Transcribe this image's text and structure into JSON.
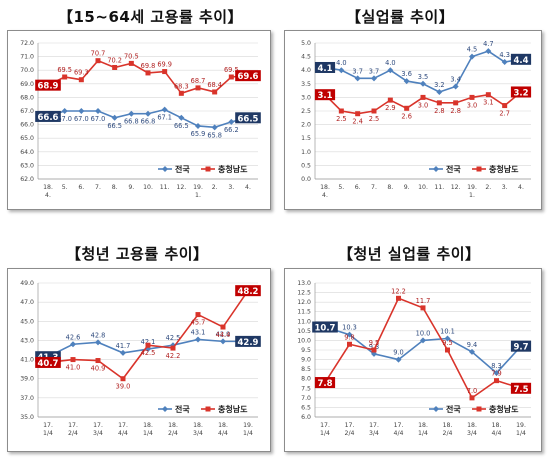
{
  "chart_data": [
    {
      "type": "line",
      "title": "【15~64세 고용률 추이】",
      "categories": [
        [
          "18.",
          "4."
        ],
        [
          "5."
        ],
        [
          "6."
        ],
        [
          "7."
        ],
        [
          "8."
        ],
        [
          "9."
        ],
        [
          "10."
        ],
        [
          "11."
        ],
        [
          "12."
        ],
        [
          "19.",
          "1."
        ],
        [
          "2."
        ],
        [
          "3."
        ],
        [
          "4."
        ]
      ],
      "ylim": [
        62.0,
        72.0
      ],
      "yticks": [
        "62.0",
        "63.0",
        "64.0",
        "65.0",
        "66.0",
        "67.0",
        "68.0",
        "69.0",
        "70.0",
        "71.0",
        "72.0"
      ],
      "grid": true,
      "legend": "bottom-right",
      "series": [
        {
          "name": "전국",
          "color": "#4f81bd",
          "marker": "diamond",
          "values": [
            66.6,
            67.0,
            67.0,
            67.0,
            66.5,
            66.8,
            66.8,
            67.1,
            66.5,
            65.9,
            65.8,
            66.2,
            66.5
          ],
          "labels": [
            "66.6",
            "67.0",
            "67.0",
            "67.0",
            "66.5",
            "66.8",
            "66.8",
            "67.1",
            "66.5",
            "65.9",
            "65.8",
            "66.2",
            "66.5"
          ]
        },
        {
          "name": "충청남도",
          "color": "#d9342b",
          "marker": "square",
          "values": [
            68.9,
            69.5,
            69.3,
            70.7,
            70.2,
            70.5,
            69.8,
            69.9,
            68.3,
            68.7,
            68.4,
            69.5,
            69.6
          ],
          "labels": [
            "68.9",
            "69.5",
            "69.3",
            "70.7",
            "70.2",
            "70.5",
            "69.8",
            "69.9",
            "68.3",
            "68.7",
            "68.4",
            "69.5",
            "69.6"
          ]
        }
      ]
    },
    {
      "type": "line",
      "title": "【실업률 추이】",
      "categories": [
        [
          "18.",
          "4."
        ],
        [
          "5."
        ],
        [
          "6."
        ],
        [
          "7."
        ],
        [
          "8."
        ],
        [
          "9."
        ],
        [
          "10."
        ],
        [
          "11."
        ],
        [
          "12."
        ],
        [
          "19.",
          "1."
        ],
        [
          "2."
        ],
        [
          "3."
        ],
        [
          "4."
        ]
      ],
      "ylim": [
        0.0,
        5.0
      ],
      "yticks": [
        "0.0",
        "0.5",
        "1.0",
        "1.5",
        "2.0",
        "2.5",
        "3.0",
        "3.5",
        "4.0",
        "4.5",
        "5.0"
      ],
      "grid": true,
      "legend": "bottom-right",
      "series": [
        {
          "name": "전국",
          "color": "#4f81bd",
          "marker": "diamond",
          "values": [
            4.1,
            4.0,
            3.7,
            3.7,
            4.0,
            3.6,
            3.5,
            3.2,
            3.4,
            4.5,
            4.7,
            4.3,
            4.4
          ],
          "labels": [
            "4.1",
            "4.0",
            "3.7",
            "3.7",
            "4.0",
            "3.6",
            "3.5",
            "3.2",
            "3.4",
            "4.5",
            "4.7",
            "4.3",
            "4.4"
          ]
        },
        {
          "name": "충청남도",
          "color": "#d9342b",
          "marker": "square",
          "values": [
            3.1,
            2.5,
            2.4,
            2.5,
            2.9,
            2.6,
            3.0,
            2.8,
            2.8,
            3.0,
            3.1,
            2.7,
            3.2
          ],
          "labels": [
            "3.1",
            "2.5",
            "2.4",
            "2.5",
            "2.9",
            "2.6",
            "3.0",
            "2.8",
            "2.8",
            "3.0",
            "3.1",
            "2.7",
            "3.2"
          ]
        }
      ]
    },
    {
      "type": "line",
      "title": "【청년 고용률 추이】",
      "categories": [
        [
          "17.",
          "1/4"
        ],
        [
          "17.",
          "2/4"
        ],
        [
          "17.",
          "3/4"
        ],
        [
          "17.",
          "4/4"
        ],
        [
          "18.",
          "1/4"
        ],
        [
          "18.",
          "2/4"
        ],
        [
          "18.",
          "3/4"
        ],
        [
          "18.",
          "4/4"
        ],
        [
          "19.",
          "1/4"
        ]
      ],
      "ylim": [
        35.0,
        49.0
      ],
      "yticks": [
        "35.0",
        "37.0",
        "39.0",
        "41.0",
        "43.0",
        "45.0",
        "47.0",
        "49.0"
      ],
      "grid": true,
      "legend": "bottom-right",
      "series": [
        {
          "name": "전국",
          "color": "#4f81bd",
          "marker": "diamond",
          "values": [
            41.3,
            42.6,
            42.8,
            41.7,
            42.1,
            42.5,
            43.1,
            42.9,
            42.9
          ],
          "labels": [
            "41.3",
            "42.6",
            "42.8",
            "41.7",
            "42.1",
            "42.5",
            "43.1",
            "42.9",
            "42.9"
          ]
        },
        {
          "name": "충청남도",
          "color": "#d9342b",
          "marker": "square",
          "values": [
            40.7,
            41.0,
            40.9,
            39.0,
            42.5,
            42.2,
            45.7,
            44.4,
            48.2
          ],
          "labels": [
            "40.7",
            "41.0",
            "40.9",
            "39.0",
            "42.5",
            "42.2",
            "45.7",
            "44.4",
            "48.2"
          ]
        }
      ]
    },
    {
      "type": "line",
      "title": "【청년 실업률 추이】",
      "categories": [
        [
          "17.",
          "1/4"
        ],
        [
          "17.",
          "2/4"
        ],
        [
          "17.",
          "3/4"
        ],
        [
          "17.",
          "4/4"
        ],
        [
          "18.",
          "1/4"
        ],
        [
          "18.",
          "2/4"
        ],
        [
          "18.",
          "3/4"
        ],
        [
          "18.",
          "4/4"
        ],
        [
          "19.",
          "1/4"
        ]
      ],
      "ylim": [
        6.0,
        13.0
      ],
      "yticks": [
        "6.0",
        "6.5",
        "7.0",
        "7.5",
        "8.0",
        "8.5",
        "9.0",
        "9.5",
        "10.0",
        "10.5",
        "11.0",
        "11.5",
        "12.0",
        "12.5",
        "13.0"
      ],
      "grid": true,
      "legend": "bottom-right",
      "series": [
        {
          "name": "전국",
          "color": "#4f81bd",
          "marker": "diamond",
          "values": [
            10.7,
            10.3,
            9.3,
            9.0,
            10.0,
            10.1,
            9.4,
            8.3,
            9.7
          ],
          "labels": [
            "10.7",
            "10.3",
            "9.3",
            "9.0",
            "10.0",
            "10.1",
            "9.4",
            "8.3",
            "9.7"
          ]
        },
        {
          "name": "충청남도",
          "color": "#d9342b",
          "marker": "square",
          "values": [
            7.8,
            9.8,
            9.5,
            12.2,
            11.7,
            9.5,
            7.0,
            7.9,
            7.5
          ],
          "labels": [
            "7.8",
            "9.8",
            "9.5",
            "12.2",
            "11.7",
            "9.5",
            "7.0",
            "7.9",
            "7.5"
          ]
        }
      ]
    }
  ]
}
